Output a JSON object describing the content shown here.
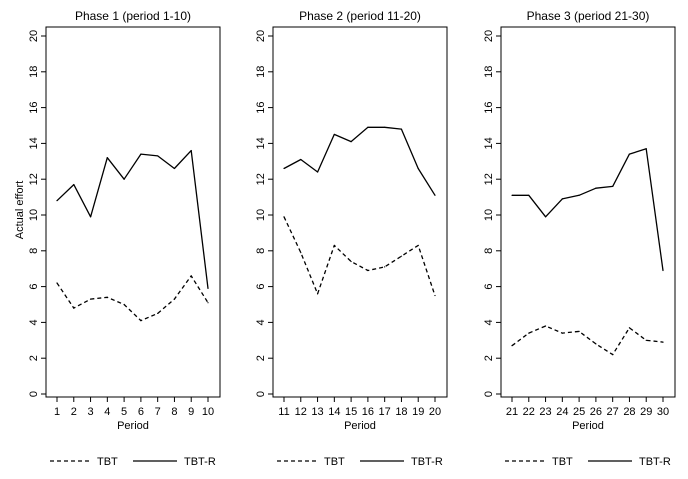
{
  "chart_data": [
    {
      "type": "line",
      "title": "Phase 1 (period 1-10)",
      "xlabel": "Period",
      "ylabel": "Actual effort",
      "ylim": [
        0,
        20
      ],
      "yticks": [
        "0",
        "2",
        "4",
        "6",
        "8",
        "10",
        "12",
        "14",
        "16",
        "18",
        "20"
      ],
      "x": [
        1,
        2,
        3,
        4,
        5,
        6,
        7,
        8,
        9,
        10
      ],
      "series": [
        {
          "name": "TBT",
          "style": "dashed",
          "values": [
            6.2,
            4.8,
            5.3,
            5.4,
            5.0,
            4.1,
            4.5,
            5.3,
            6.6,
            5.1
          ]
        },
        {
          "name": "TBT-R",
          "style": "solid",
          "values": [
            10.8,
            11.7,
            9.9,
            13.2,
            12.0,
            13.4,
            13.3,
            12.6,
            13.6,
            5.9
          ]
        }
      ]
    },
    {
      "type": "line",
      "title": "Phase 2 (period 11-20)",
      "xlabel": "Period",
      "ylabel": "",
      "ylim": [
        0,
        20
      ],
      "yticks": [
        "0",
        "2",
        "4",
        "6",
        "8",
        "10",
        "12",
        "14",
        "16",
        "18",
        "20"
      ],
      "x": [
        11,
        12,
        13,
        14,
        15,
        16,
        17,
        18,
        19,
        20
      ],
      "series": [
        {
          "name": "TBT",
          "style": "dashed",
          "values": [
            9.9,
            7.9,
            5.6,
            8.3,
            7.4,
            6.9,
            7.1,
            7.7,
            8.3,
            5.5
          ]
        },
        {
          "name": "TBT-R",
          "style": "solid",
          "values": [
            12.6,
            13.1,
            12.4,
            14.5,
            14.1,
            14.9,
            14.9,
            14.8,
            12.6,
            11.1
          ]
        }
      ]
    },
    {
      "type": "line",
      "title": "Phase 3 (period 21-30)",
      "xlabel": "Period",
      "ylabel": "",
      "ylim": [
        0,
        20
      ],
      "yticks": [
        "0",
        "2",
        "4",
        "6",
        "8",
        "10",
        "12",
        "14",
        "16",
        "18",
        "20"
      ],
      "x": [
        21,
        22,
        23,
        24,
        25,
        26,
        27,
        28,
        29,
        30
      ],
      "series": [
        {
          "name": "TBT",
          "style": "dashed",
          "values": [
            2.7,
            3.4,
            3.8,
            3.4,
            3.5,
            2.8,
            2.2,
            3.7,
            3.0,
            2.9
          ]
        },
        {
          "name": "TBT-R",
          "style": "solid",
          "values": [
            11.1,
            11.1,
            9.9,
            10.9,
            11.1,
            11.5,
            11.6,
            13.4,
            13.7,
            6.9
          ]
        }
      ]
    }
  ],
  "legend": {
    "position": "bottom",
    "items": [
      "TBT",
      "TBT-R"
    ]
  },
  "colors": {
    "line": "#000000",
    "background": "#ffffff"
  }
}
